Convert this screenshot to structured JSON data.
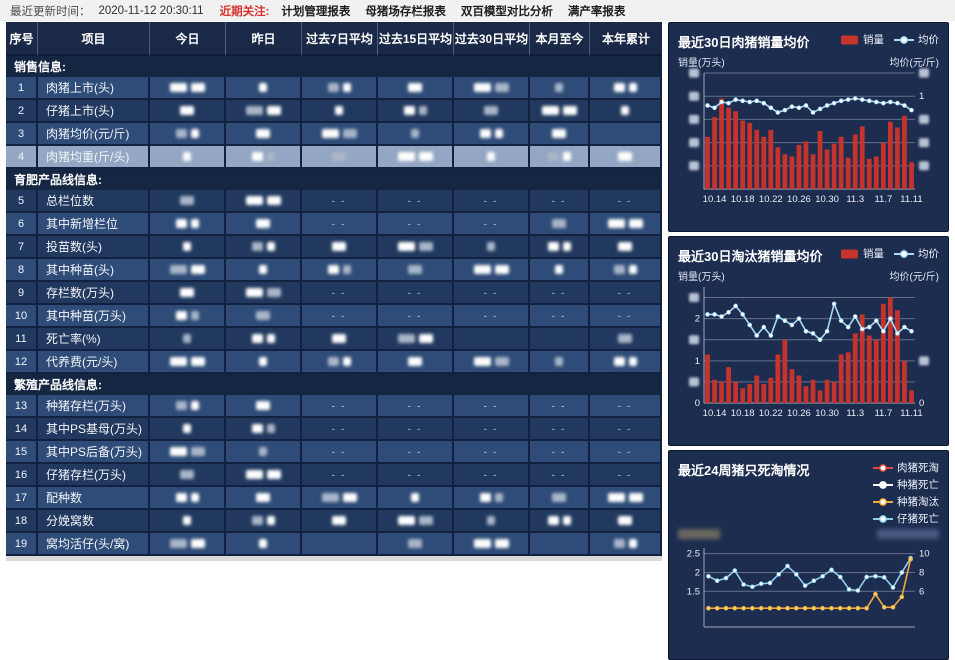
{
  "topbar": {
    "updated_label": "最近更新时间：",
    "updated_time": "2020-11-12 20:30:11",
    "focus_label": "近期关注:",
    "links": [
      "计划管理报表",
      "母猪场存栏报表",
      "双百模型对比分析",
      "满产率报表"
    ]
  },
  "table": {
    "headers": [
      "序号",
      "项目",
      "今日",
      "昨日",
      "过去7日平均",
      "过去15日平均",
      "过去30日平均",
      "本月至今",
      "本年累计"
    ],
    "rows": [
      {
        "type": "section",
        "label": "销售信息:"
      },
      {
        "type": "data",
        "no": "1",
        "label": "肉猪上市(头)",
        "shade": "M",
        "cells": [
          "b",
          "b",
          "b",
          "b",
          "b",
          "b",
          "b"
        ]
      },
      {
        "type": "data",
        "no": "2",
        "label": "仔猪上市(头)",
        "shade": "D",
        "cells": [
          "b",
          "b",
          "b",
          "b",
          "b",
          "b",
          "b"
        ]
      },
      {
        "type": "data",
        "no": "3",
        "label": "肉猪均价(元/斤)",
        "shade": "M",
        "cells": [
          "b",
          "b",
          "b",
          "b",
          "b",
          "b",
          ""
        ]
      },
      {
        "type": "data",
        "no": "4",
        "label": "肉猪均重(斤/头)",
        "shade": "H",
        "cells": [
          "b",
          "b",
          "b",
          "b",
          "b",
          "b",
          "b"
        ]
      },
      {
        "type": "section",
        "label": "育肥产品线信息:"
      },
      {
        "type": "data",
        "no": "5",
        "label": "总栏位数",
        "shade": "D",
        "cells": [
          "b",
          "b",
          "d",
          "d",
          "d",
          "d",
          "d"
        ]
      },
      {
        "type": "data",
        "no": "6",
        "label": "其中新增栏位",
        "shade": "M",
        "cells": [
          "b",
          "b",
          "d",
          "d",
          "d",
          "b",
          "b"
        ]
      },
      {
        "type": "data",
        "no": "7",
        "label": "投苗数(头)",
        "shade": "D",
        "cells": [
          "b",
          "b",
          "b",
          "b",
          "b",
          "b",
          "b"
        ]
      },
      {
        "type": "data",
        "no": "8",
        "label": "其中种苗(头)",
        "shade": "M",
        "cells": [
          "b",
          "b",
          "b",
          "b",
          "b",
          "b",
          "b"
        ]
      },
      {
        "type": "data",
        "no": "9",
        "label": "存栏数(万头)",
        "shade": "D",
        "cells": [
          "b",
          "b",
          "d",
          "d",
          "d",
          "d",
          "d"
        ]
      },
      {
        "type": "data",
        "no": "10",
        "label": "其中种苗(万头)",
        "shade": "M",
        "cells": [
          "b",
          "b",
          "d",
          "d",
          "d",
          "d",
          "d"
        ]
      },
      {
        "type": "data",
        "no": "11",
        "label": "死亡率(%)",
        "shade": "D",
        "cells": [
          "b",
          "b",
          "b",
          "b",
          "",
          "",
          "b"
        ]
      },
      {
        "type": "data",
        "no": "12",
        "label": "代养费(元/头)",
        "shade": "M",
        "cells": [
          "b",
          "b",
          "b",
          "b",
          "b",
          "b",
          "b"
        ]
      },
      {
        "type": "section",
        "label": "繁殖产品线信息:"
      },
      {
        "type": "data",
        "no": "13",
        "label": "种猪存栏(万头)",
        "shade": "M",
        "cells": [
          "b",
          "b",
          "d",
          "d",
          "d",
          "d",
          "d"
        ]
      },
      {
        "type": "data",
        "no": "14",
        "label": "其中PS基母(万头)",
        "shade": "D",
        "cells": [
          "b",
          "b",
          "d",
          "d",
          "d",
          "d",
          "d"
        ]
      },
      {
        "type": "data",
        "no": "15",
        "label": "其中PS后备(万头)",
        "shade": "M",
        "cells": [
          "b",
          "b",
          "d",
          "d",
          "d",
          "d",
          "d"
        ]
      },
      {
        "type": "data",
        "no": "16",
        "label": "仔猪存栏(万头)",
        "shade": "D",
        "cells": [
          "b",
          "b",
          "d",
          "d",
          "d",
          "d",
          "d"
        ]
      },
      {
        "type": "data",
        "no": "17",
        "label": "配种数",
        "shade": "M",
        "cells": [
          "b",
          "b",
          "b",
          "b",
          "b",
          "b",
          "b"
        ]
      },
      {
        "type": "data",
        "no": "18",
        "label": "分娩窝数",
        "shade": "D",
        "cells": [
          "b",
          "b",
          "b",
          "b",
          "b",
          "b",
          "b"
        ]
      },
      {
        "type": "data",
        "no": "19",
        "label": "窝均活仔(头/窝)",
        "shade": "M",
        "cells": [
          "b",
          "b",
          "",
          "b",
          "b",
          "",
          "b"
        ]
      }
    ]
  },
  "chart_data": [
    {
      "type": "bar",
      "title": "最近30日肉猪销量均价",
      "ylabel_left": "销量(万头)",
      "ylabel_right": "均价(元/斤)",
      "legend": [
        {
          "label": "销量",
          "kind": "bar",
          "color": "#c5332d"
        },
        {
          "label": "均价",
          "kind": "line",
          "color": "#a9dcf7"
        }
      ],
      "ylim": [
        0,
        100
      ],
      "grid": [
        20,
        40,
        60,
        80,
        100
      ],
      "bars": [
        45,
        62,
        78,
        70,
        67,
        59,
        57,
        51,
        45,
        51,
        36,
        30,
        28,
        38,
        41,
        30,
        50,
        34,
        39,
        45,
        27,
        47,
        54,
        26,
        28,
        40,
        58,
        53,
        63,
        23
      ],
      "lines": [
        {
          "name": "均价",
          "color": "#a9dcf7",
          "marker": "#ffffff",
          "axis": "left",
          "values": [
            72,
            70,
            75,
            74,
            77,
            76,
            75,
            76,
            74,
            70,
            66,
            68,
            71,
            70,
            72,
            66,
            69,
            72,
            74,
            76,
            77,
            78,
            77,
            76,
            75,
            74,
            75,
            74,
            72,
            68
          ]
        }
      ],
      "left_labels": [
        {
          "u": 20,
          "t": null
        },
        {
          "u": 40,
          "t": null
        },
        {
          "u": 60,
          "t": null
        },
        {
          "u": 80,
          "t": null
        },
        {
          "u": 100,
          "t": null
        }
      ],
      "right_labels": [
        {
          "u": 100,
          "t": null
        },
        {
          "u": 80,
          "t": "1"
        },
        {
          "u": 60,
          "t": null
        },
        {
          "u": 40,
          "t": null
        },
        {
          "u": 20,
          "t": null
        }
      ],
      "x_ticks": [
        {
          "i": 1,
          "t": "10.14"
        },
        {
          "i": 5,
          "t": "10.18"
        },
        {
          "i": 9,
          "t": "10.22"
        },
        {
          "i": 13,
          "t": "10.26"
        },
        {
          "i": 17,
          "t": "10.30"
        },
        {
          "i": 21,
          "t": "11.3"
        },
        {
          "i": 25,
          "t": "11.7"
        },
        {
          "i": 29,
          "t": "11.11"
        }
      ]
    },
    {
      "type": "bar",
      "title": "最近30日淘汰猪销量均价",
      "ylabel_left": "销量(万头)",
      "ylabel_right": "均价(元/斤)",
      "legend": [
        {
          "label": "销量",
          "kind": "bar",
          "color": "#c5332d"
        },
        {
          "label": "均价",
          "kind": "line",
          "color": "#a9dcf7"
        }
      ],
      "ylim": [
        0,
        2.75
      ],
      "grid": [
        0.5,
        1,
        1.5,
        2,
        2.5
      ],
      "bars": [
        1.15,
        0.55,
        0.5,
        0.85,
        0.5,
        0.35,
        0.45,
        0.65,
        0.45,
        0.6,
        1.15,
        1.5,
        0.8,
        0.65,
        0.4,
        0.55,
        0.3,
        0.55,
        0.5,
        1.15,
        1.2,
        1.65,
        2.1,
        1.6,
        1.5,
        2.35,
        2.5,
        2.2,
        1.0,
        0.3
      ],
      "lines": [
        {
          "name": "均价",
          "color": "#a9dcf7",
          "marker": "#ffffff",
          "axis": "left",
          "values": [
            2.1,
            2.1,
            2.05,
            2.15,
            2.3,
            2.1,
            1.85,
            1.6,
            1.8,
            1.6,
            2.05,
            1.95,
            1.85,
            2.0,
            1.7,
            1.65,
            1.5,
            1.7,
            2.35,
            1.95,
            1.8,
            2.05,
            1.75,
            1.8,
            1.95,
            1.7,
            2.0,
            1.65,
            1.8,
            1.7
          ]
        }
      ],
      "left_labels": [
        {
          "u": 0,
          "t": "0"
        },
        {
          "u": 0.5,
          "t": null
        },
        {
          "u": 1,
          "t": "1"
        },
        {
          "u": 1.5,
          "t": null
        },
        {
          "u": 2,
          "t": "2"
        },
        {
          "u": 2.5,
          "t": null
        }
      ],
      "right_labels": [
        {
          "u": 1.0,
          "t": null
        },
        {
          "u": 0,
          "t": "0"
        }
      ],
      "x_ticks": [
        {
          "i": 1,
          "t": "10.14"
        },
        {
          "i": 5,
          "t": "10.18"
        },
        {
          "i": 9,
          "t": "10.22"
        },
        {
          "i": 13,
          "t": "10.26"
        },
        {
          "i": 17,
          "t": "10.30"
        },
        {
          "i": 21,
          "t": "11.3"
        },
        {
          "i": 25,
          "t": "11.7"
        },
        {
          "i": 29,
          "t": "11.11"
        }
      ]
    },
    {
      "type": "line",
      "title": "最近24周猪只死淘情况",
      "ylabel_left": "",
      "ylabel_right": "",
      "legend": [
        {
          "label": "肉猪死淘",
          "kind": "line",
          "color": "#e2453c"
        },
        {
          "label": "种猪死亡",
          "kind": "line",
          "color": "#ffffff"
        },
        {
          "label": "种猪淘汰",
          "kind": "line",
          "color": "#f2a93b"
        },
        {
          "label": "仔猪死亡",
          "kind": "line",
          "color": "#8fd0ee"
        }
      ],
      "ylim": [
        0.55,
        2.65
      ],
      "right_ylim": [
        2.2,
        10.6
      ],
      "grid": [
        1.5,
        2,
        2.5
      ],
      "bars": [],
      "lines": [
        {
          "name": "仔猪死亡",
          "color": "#8fd0ee",
          "marker": "#ffffff",
          "axis": "left",
          "values": [
            1.9,
            1.78,
            1.85,
            2.05,
            1.68,
            1.62,
            1.7,
            1.72,
            1.95,
            2.17,
            1.95,
            1.65,
            1.78,
            1.9,
            2.07,
            1.88,
            1.55,
            1.52,
            1.88,
            1.9,
            1.87,
            1.6,
            2.0,
            2.38
          ]
        },
        {
          "name": "种猪淘汰",
          "color": "#f2a93b",
          "marker": "#f7d26a",
          "axis": "right",
          "values": [
            4.2,
            4.2,
            4.2,
            4.2,
            4.2,
            4.2,
            4.2,
            4.2,
            4.2,
            4.2,
            4.2,
            4.2,
            4.2,
            4.2,
            4.2,
            4.2,
            4.2,
            4.2,
            4.2,
            5.7,
            4.3,
            4.3,
            5.4,
            9.4
          ]
        },
        {
          "name": "肉猪死淘",
          "color": "#e2453c",
          "marker": "#ffffff",
          "axis": "right",
          "values": []
        },
        {
          "name": "种猪死亡",
          "color": "#ffffff",
          "marker": "#ffffff",
          "axis": "right",
          "values": []
        }
      ],
      "left_labels": [
        {
          "u": 1.5,
          "t": "1.5"
        },
        {
          "u": 2,
          "t": "2"
        },
        {
          "u": 2.5,
          "t": "2.5"
        }
      ],
      "right_labels": [
        {
          "u": 2.5,
          "t": "10"
        },
        {
          "u": 2,
          "t": "8"
        },
        {
          "u": 1.5,
          "t": "6"
        }
      ],
      "x_ticks": []
    }
  ],
  "colors": {
    "bar_red": "#c5332d",
    "price_line": "#a9dcf7",
    "panel_bg": "#1d2d50",
    "row_medium": "#2e4c77",
    "row_dark": "#21395e",
    "row_highlight": "#93a6c3",
    "header_bg": "#1a2947",
    "focus_red": "#d9322c"
  }
}
